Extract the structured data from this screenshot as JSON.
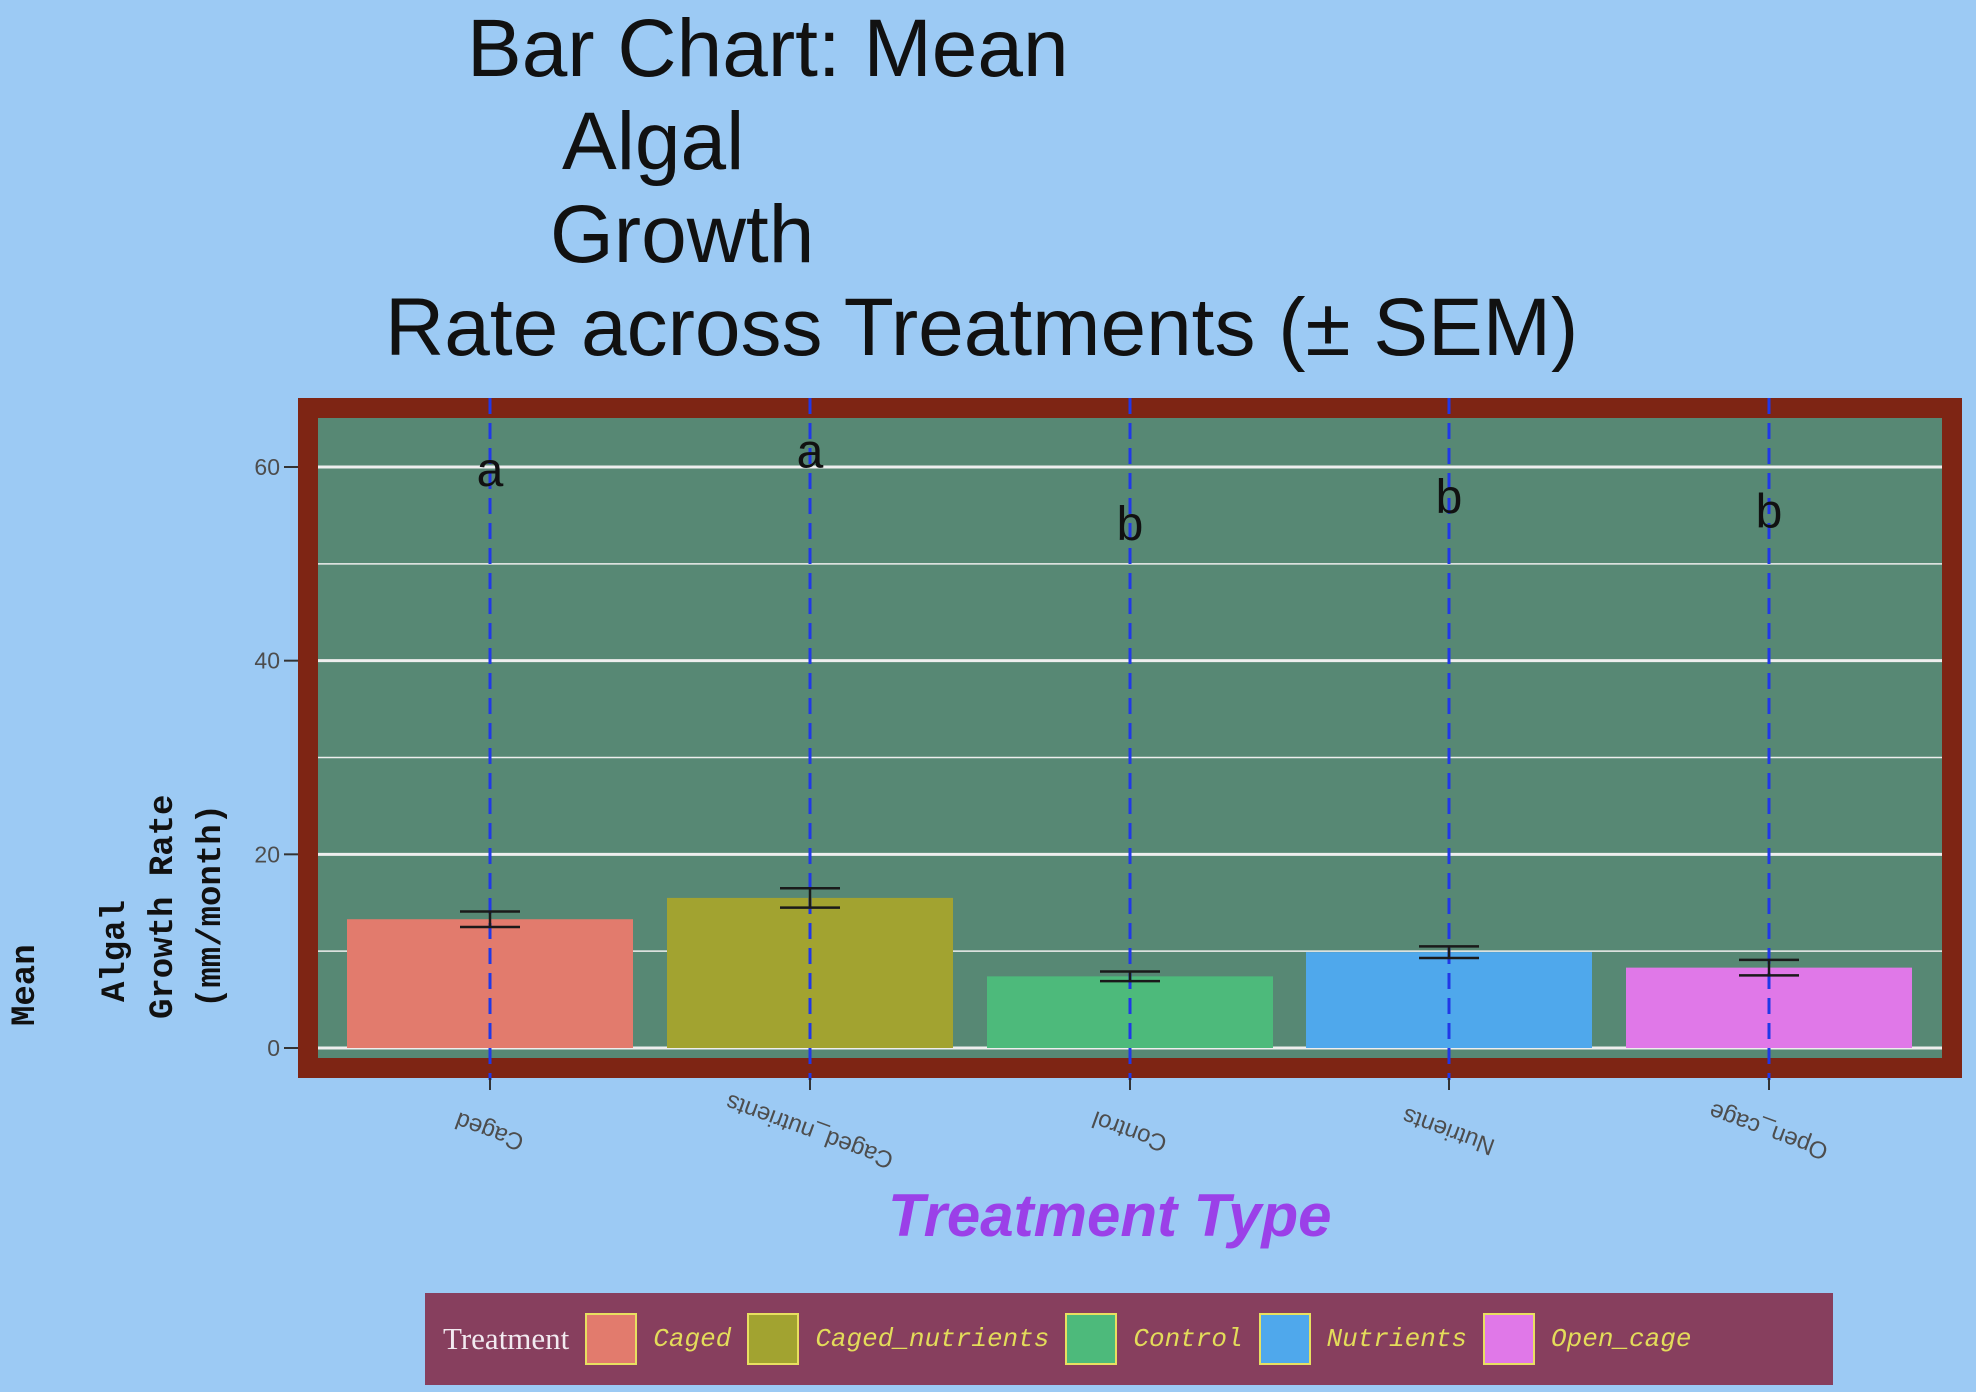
{
  "chart_data": {
    "type": "bar",
    "title_lines": [
      "Bar Chart: Mean",
      "Algal",
      "Growth",
      "Rate across Treatments (± SEM)"
    ],
    "ylabel_lines": [
      "Mean",
      "Algal",
      "Growth Rate",
      "(mm/month)"
    ],
    "xlabel": "Treatment Type",
    "categories": [
      "Caged",
      "Caged_nutrients",
      "Control",
      "Nutrients",
      "Open_cage"
    ],
    "values": [
      13.3,
      15.5,
      7.4,
      9.9,
      8.3
    ],
    "sem": [
      0.8,
      1.0,
      0.5,
      0.6,
      0.8
    ],
    "significance_letters": [
      "a",
      "a",
      "b",
      "b",
      "b"
    ],
    "letter_positions": [
      59.7,
      61.6,
      54.1,
      56.9,
      55.4
    ],
    "colors": [
      "#e27b6d",
      "#a2a330",
      "#4dba7b",
      "#4fa8ec",
      "#e078e8"
    ],
    "ylim": [
      -1,
      66
    ],
    "y_ticks": [
      0,
      20,
      40,
      60
    ],
    "y_minor_gridlines": [
      10,
      30,
      50
    ],
    "grid": true,
    "legend": {
      "title": "Treatment",
      "placement": "bottom",
      "entries": [
        "Caged",
        "Caged_nutrients",
        "Control",
        "Nutrients",
        "Open_cage"
      ]
    },
    "styling": {
      "panel_background": "#578874",
      "panel_border": "#7e2514",
      "page_background": "#9ccaf4",
      "reference_line": "#2038e8",
      "gridline": "#eeeeee",
      "xlabel_color": "#9b40e8",
      "legend_background": "#873f5e",
      "legend_text": "#e3dc5a"
    }
  }
}
